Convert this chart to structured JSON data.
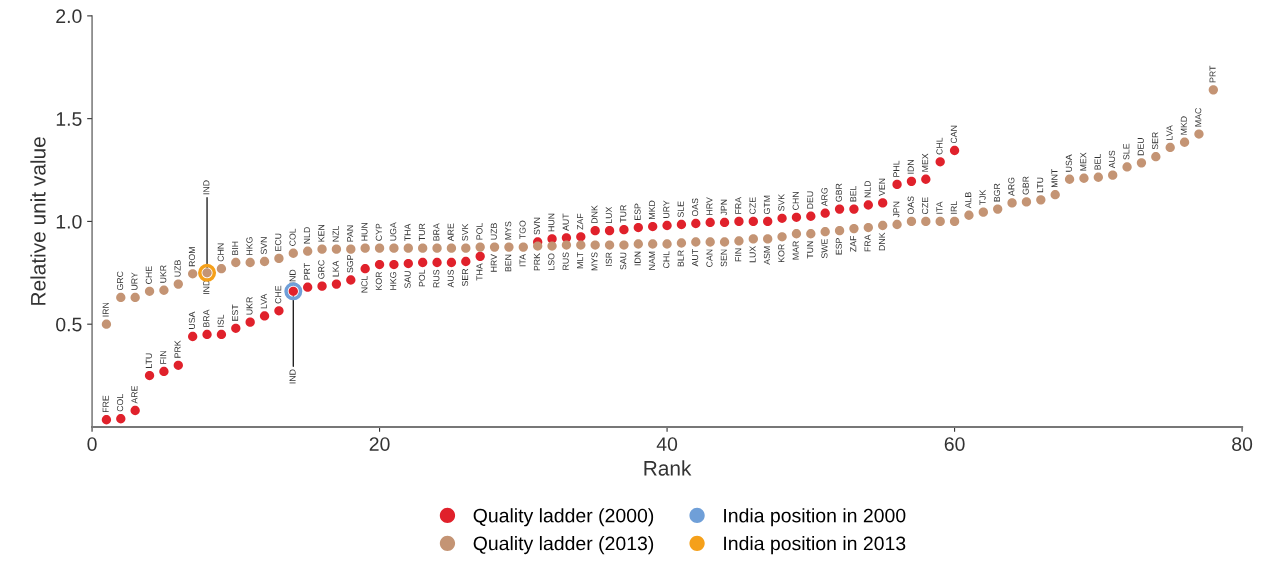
{
  "chart_data": {
    "type": "scatter",
    "xlabel": "Rank",
    "ylabel": "Relative unit value",
    "xlim": [
      0,
      80
    ],
    "xticks": [
      0,
      20,
      40,
      60,
      80
    ],
    "ylim": [
      0,
      2
    ],
    "yticks": [
      {
        "value": 0.5,
        "label": "0.5"
      },
      {
        "value": 1,
        "label": "1.0"
      },
      {
        "value": 1.5,
        "label": "1.5"
      },
      {
        "value": 2,
        "label": "2.0"
      }
    ],
    "grid": false,
    "legend": "bottom",
    "marker": "circle",
    "series": [
      {
        "name": "Quality ladder (2000)",
        "color": "#e0212b",
        "x": [
          1,
          2,
          3,
          4,
          5,
          6,
          7,
          8,
          9,
          10,
          11,
          12,
          13,
          14,
          15,
          16,
          17,
          18,
          19,
          20,
          21,
          22,
          23,
          24,
          25,
          26,
          27,
          28,
          29,
          30,
          31,
          32,
          33,
          34,
          35,
          36,
          37,
          38,
          39,
          40,
          41,
          42,
          43,
          44,
          45,
          46,
          47,
          48,
          49,
          50,
          51,
          52,
          53,
          54,
          55,
          56,
          57,
          58,
          59,
          60
        ],
        "values": [
          0.035,
          0.04,
          0.08,
          0.25,
          0.27,
          0.3,
          0.44,
          0.45,
          0.45,
          0.48,
          0.51,
          0.54,
          0.565,
          0.66,
          0.68,
          0.685,
          0.695,
          0.715,
          0.77,
          0.79,
          0.79,
          0.795,
          0.8,
          0.8,
          0.8,
          0.805,
          0.83,
          null,
          null,
          null,
          0.9,
          0.915,
          0.92,
          0.925,
          0.955,
          0.955,
          0.96,
          0.97,
          0.975,
          0.98,
          0.985,
          0.99,
          0.995,
          0.995,
          1.0,
          1.0,
          1.0,
          1.015,
          1.02,
          1.025,
          1.04,
          1.06,
          1.06,
          1.08,
          1.09,
          1.18,
          1.195,
          1.205,
          1.29,
          1.345
        ]
      },
      {
        "name": "Quality ladder (2013)",
        "color": "#c49474",
        "x": [
          1,
          2,
          3,
          4,
          5,
          6,
          7,
          8,
          9,
          10,
          11,
          12,
          13,
          14,
          15,
          16,
          17,
          18,
          19,
          20,
          21,
          22,
          23,
          24,
          25,
          26,
          27,
          28,
          29,
          30,
          31,
          32,
          33,
          34,
          35,
          36,
          37,
          38,
          39,
          40,
          41,
          42,
          43,
          44,
          45,
          46,
          47,
          48,
          49,
          50,
          51,
          52,
          53,
          54,
          55,
          56,
          57,
          58,
          59,
          60,
          61,
          62,
          63,
          64,
          65,
          66,
          67,
          68,
          69,
          70,
          71,
          72,
          73,
          74,
          75,
          76,
          77,
          78
        ],
        "values": [
          0.5,
          0.63,
          0.63,
          0.66,
          0.665,
          0.695,
          0.745,
          0.75,
          0.77,
          0.8,
          0.8,
          0.805,
          0.82,
          0.845,
          0.855,
          0.865,
          0.865,
          0.865,
          0.87,
          0.87,
          0.87,
          0.87,
          0.87,
          0.87,
          0.87,
          0.87,
          0.875,
          0.875,
          0.875,
          0.875,
          0.88,
          0.88,
          0.885,
          0.885,
          0.885,
          0.885,
          0.885,
          0.89,
          0.89,
          0.89,
          0.895,
          0.9,
          0.9,
          0.9,
          0.905,
          0.915,
          0.915,
          0.925,
          0.94,
          0.94,
          0.95,
          0.955,
          0.965,
          0.97,
          0.98,
          0.985,
          1.0,
          1.0,
          1.0,
          1.0,
          1.03,
          1.045,
          1.06,
          1.09,
          1.095,
          1.105,
          1.13,
          1.205,
          1.21,
          1.215,
          1.225,
          1.265,
          1.285,
          1.315,
          1.36,
          1.385,
          1.425,
          1.64
        ]
      },
      {
        "name": "India position in 2000",
        "color": "#6f9fd8",
        "x": [
          14
        ],
        "values": [
          0.66
        ]
      },
      {
        "name": "India position in 2013",
        "color": "#f5a01a",
        "x": [
          8
        ],
        "values": [
          0.75
        ]
      }
    ],
    "annotations": [
      {
        "text": "FRE",
        "x": 1,
        "y": 0.035
      },
      {
        "text": "COL",
        "x": 2,
        "y": 0.04
      },
      {
        "text": "ARE",
        "x": 3,
        "y": 0.08
      },
      {
        "text": "LTU",
        "x": 4,
        "y": 0.25
      },
      {
        "text": "FIN",
        "x": 5,
        "y": 0.27
      },
      {
        "text": "PRK",
        "x": 6,
        "y": 0.3
      },
      {
        "text": "USA",
        "x": 7,
        "y": 0.44
      },
      {
        "text": "BRA",
        "x": 8,
        "y": 0.45
      },
      {
        "text": "ISL",
        "x": 9,
        "y": 0.45
      },
      {
        "text": "EST",
        "x": 10,
        "y": 0.48
      },
      {
        "text": "UKR",
        "x": 11,
        "y": 0.51
      },
      {
        "text": "LVA",
        "x": 12,
        "y": 0.54
      },
      {
        "text": "CHE",
        "x": 13,
        "y": 0.565
      },
      {
        "text": "IND",
        "x": 14,
        "y": 0.66
      },
      {
        "text": "IND",
        "x": 14,
        "y": 0.66
      },
      {
        "text": "PRT",
        "x": 15,
        "y": 0.68
      },
      {
        "text": "GRC",
        "x": 16,
        "y": 0.685
      },
      {
        "text": "LKA",
        "x": 17,
        "y": 0.695
      },
      {
        "text": "SGP",
        "x": 18,
        "y": 0.715
      },
      {
        "text": "NCL",
        "x": 19,
        "y": 0.77
      },
      {
        "text": "KOR",
        "x": 20,
        "y": 0.79
      },
      {
        "text": "HKG",
        "x": 21,
        "y": 0.79
      },
      {
        "text": "SAU",
        "x": 22,
        "y": 0.795
      },
      {
        "text": "POL",
        "x": 23,
        "y": 0.8
      },
      {
        "text": "RUS",
        "x": 24,
        "y": 0.8
      },
      {
        "text": "AUS",
        "x": 25,
        "y": 0.8
      },
      {
        "text": "SER",
        "x": 26,
        "y": 0.805
      },
      {
        "text": "THA",
        "x": 27,
        "y": 0.83
      },
      {
        "text": "HRV",
        "x": 28,
        "y": 0.875
      },
      {
        "text": "BEN",
        "x": 29,
        "y": 0.875
      },
      {
        "text": "TGO",
        "x": 30,
        "y": 0.88
      },
      {
        "text": "SVN",
        "x": 31,
        "y": 0.9
      },
      {
        "text": "HUN",
        "x": 32,
        "y": 0.915
      },
      {
        "text": "AUT",
        "x": 33,
        "y": 0.92
      },
      {
        "text": "ZAF",
        "x": 34,
        "y": 0.925
      },
      {
        "text": "DNK",
        "x": 35,
        "y": 0.955
      },
      {
        "text": "LUX",
        "x": 36,
        "y": 0.955
      },
      {
        "text": "TUR",
        "x": 37,
        "y": 0.96
      },
      {
        "text": "ESP",
        "x": 38,
        "y": 0.97
      },
      {
        "text": "MKD",
        "x": 39,
        "y": 0.975
      },
      {
        "text": "URY",
        "x": 40,
        "y": 0.98
      },
      {
        "text": "SLE",
        "x": 41,
        "y": 0.985
      },
      {
        "text": "OAS",
        "x": 42,
        "y": 0.99
      },
      {
        "text": "HRV",
        "x": 43,
        "y": 0.995
      },
      {
        "text": "JPN",
        "x": 44,
        "y": 0.995
      },
      {
        "text": "FRA",
        "x": 45,
        "y": 1.0
      },
      {
        "text": "CZE",
        "x": 46,
        "y": 1.0
      },
      {
        "text": "GTM",
        "x": 47,
        "y": 1.0
      },
      {
        "text": "SVK",
        "x": 48,
        "y": 1.015
      },
      {
        "text": "CHN",
        "x": 49,
        "y": 1.02
      },
      {
        "text": "DEU",
        "x": 50,
        "y": 1.025
      },
      {
        "text": "ARG",
        "x": 51,
        "y": 1.04
      },
      {
        "text": "GBR",
        "x": 52,
        "y": 1.06
      },
      {
        "text": "BEL",
        "x": 53,
        "y": 1.06
      },
      {
        "text": "NLD",
        "x": 54,
        "y": 1.08
      },
      {
        "text": "VEN",
        "x": 55,
        "y": 1.09
      },
      {
        "text": "PHL",
        "x": 56,
        "y": 1.18
      },
      {
        "text": "IDN",
        "x": 57,
        "y": 1.195
      },
      {
        "text": "MEX",
        "x": 58,
        "y": 1.205
      },
      {
        "text": "CHL",
        "x": 59,
        "y": 1.29
      },
      {
        "text": "CAN",
        "x": 60,
        "y": 1.345
      },
      {
        "text": "IRN",
        "x": 1,
        "y": 0.5
      },
      {
        "text": "GRC",
        "x": 2,
        "y": 0.63
      },
      {
        "text": "URY",
        "x": 3,
        "y": 0.63
      },
      {
        "text": "CHE",
        "x": 4,
        "y": 0.66
      },
      {
        "text": "UKR",
        "x": 5,
        "y": 0.665
      },
      {
        "text": "UZB",
        "x": 6,
        "y": 0.695
      },
      {
        "text": "ROM",
        "x": 7,
        "y": 0.745
      },
      {
        "text": "IND",
        "x": 8,
        "y": 0.75
      },
      {
        "text": "IND",
        "x": 8,
        "y": 0.75
      },
      {
        "text": "CHN",
        "x": 9,
        "y": 0.77
      },
      {
        "text": "BIH",
        "x": 10,
        "y": 0.8
      },
      {
        "text": "HKG",
        "x": 11,
        "y": 0.8
      },
      {
        "text": "SVN",
        "x": 12,
        "y": 0.805
      },
      {
        "text": "ECU",
        "x": 13,
        "y": 0.82
      },
      {
        "text": "COL",
        "x": 14,
        "y": 0.845
      },
      {
        "text": "NLD",
        "x": 15,
        "y": 0.855
      },
      {
        "text": "KEN",
        "x": 16,
        "y": 0.865
      },
      {
        "text": "NZL",
        "x": 17,
        "y": 0.865
      },
      {
        "text": "PAN",
        "x": 18,
        "y": 0.865
      },
      {
        "text": "HUN",
        "x": 19,
        "y": 0.87
      },
      {
        "text": "CYP",
        "x": 20,
        "y": 0.87
      },
      {
        "text": "UGA",
        "x": 21,
        "y": 0.87
      },
      {
        "text": "THA",
        "x": 22,
        "y": 0.87
      },
      {
        "text": "TUR",
        "x": 23,
        "y": 0.87
      },
      {
        "text": "BRA",
        "x": 24,
        "y": 0.87
      },
      {
        "text": "ARE",
        "x": 25,
        "y": 0.87
      },
      {
        "text": "SVK",
        "x": 26,
        "y": 0.87
      },
      {
        "text": "POL",
        "x": 27,
        "y": 0.875
      },
      {
        "text": "UZB",
        "x": 28,
        "y": 0.875
      },
      {
        "text": "MYS",
        "x": 29,
        "y": 0.875
      },
      {
        "text": "ITA",
        "x": 30,
        "y": 0.875
      },
      {
        "text": "PRK",
        "x": 31,
        "y": 0.88
      },
      {
        "text": "LSO",
        "x": 32,
        "y": 0.88
      },
      {
        "text": "RUS",
        "x": 33,
        "y": 0.885
      },
      {
        "text": "MLT",
        "x": 34,
        "y": 0.885
      },
      {
        "text": "MYS",
        "x": 35,
        "y": 0.885
      },
      {
        "text": "ISR",
        "x": 36,
        "y": 0.885
      },
      {
        "text": "SAU",
        "x": 37,
        "y": 0.885
      },
      {
        "text": "IDN",
        "x": 38,
        "y": 0.89
      },
      {
        "text": "NAM",
        "x": 39,
        "y": 0.89
      },
      {
        "text": "CHL",
        "x": 40,
        "y": 0.89
      },
      {
        "text": "BLR",
        "x": 41,
        "y": 0.895
      },
      {
        "text": "AUT",
        "x": 42,
        "y": 0.9
      },
      {
        "text": "CAN",
        "x": 43,
        "y": 0.9
      },
      {
        "text": "SEN",
        "x": 44,
        "y": 0.9
      },
      {
        "text": "FIN",
        "x": 45,
        "y": 0.905
      },
      {
        "text": "LUX",
        "x": 46,
        "y": 0.915
      },
      {
        "text": "ASM",
        "x": 47,
        "y": 0.915
      },
      {
        "text": "KOR",
        "x": 48,
        "y": 0.925
      },
      {
        "text": "MAR",
        "x": 49,
        "y": 0.94
      },
      {
        "text": "TUN",
        "x": 50,
        "y": 0.94
      },
      {
        "text": "SWE",
        "x": 51,
        "y": 0.95
      },
      {
        "text": "ESP",
        "x": 52,
        "y": 0.955
      },
      {
        "text": "ZAF",
        "x": 53,
        "y": 0.965
      },
      {
        "text": "FRA",
        "x": 54,
        "y": 0.97
      },
      {
        "text": "DNK",
        "x": 55,
        "y": 0.98
      },
      {
        "text": "JPN",
        "x": 56,
        "y": 0.985
      },
      {
        "text": "OAS",
        "x": 57,
        "y": 1.0
      },
      {
        "text": "CZE",
        "x": 58,
        "y": 1.0
      },
      {
        "text": "ITA",
        "x": 59,
        "y": 1.0
      },
      {
        "text": "IRL",
        "x": 60,
        "y": 1.0
      },
      {
        "text": "ALB",
        "x": 61,
        "y": 1.03
      },
      {
        "text": "TJK",
        "x": 62,
        "y": 1.045
      },
      {
        "text": "BGR",
        "x": 63,
        "y": 1.06
      },
      {
        "text": "ARG",
        "x": 64,
        "y": 1.09
      },
      {
        "text": "GBR",
        "x": 65,
        "y": 1.095
      },
      {
        "text": "LTU",
        "x": 66,
        "y": 1.105
      },
      {
        "text": "MNT",
        "x": 67,
        "y": 1.13
      },
      {
        "text": "USA",
        "x": 68,
        "y": 1.205
      },
      {
        "text": "MEX",
        "x": 69,
        "y": 1.21
      },
      {
        "text": "BEL",
        "x": 70,
        "y": 1.215
      },
      {
        "text": "AUS",
        "x": 71,
        "y": 1.225
      },
      {
        "text": "SLE",
        "x": 72,
        "y": 1.265
      },
      {
        "text": "DEU",
        "x": 73,
        "y": 1.285
      },
      {
        "text": "SER",
        "x": 74,
        "y": 1.315
      },
      {
        "text": "LVA",
        "x": 75,
        "y": 1.36
      },
      {
        "text": "MKD",
        "x": 76,
        "y": 1.385
      },
      {
        "text": "MAC",
        "x": 77,
        "y": 1.425
      },
      {
        "text": "PRT",
        "x": 78,
        "y": 1.64
      }
    ]
  }
}
